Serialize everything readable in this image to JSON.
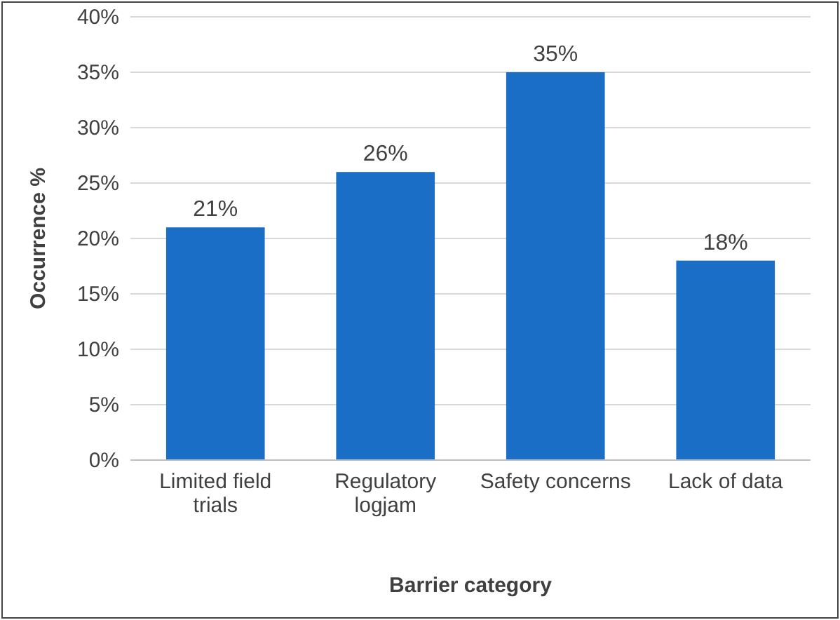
{
  "chart_data": {
    "type": "bar",
    "xlabel": "Barrier category",
    "ylabel": "Occurrence %",
    "categories": [
      "Limited field trials",
      "Regulatory logjam",
      "Safety concerns",
      "Lack of data"
    ],
    "values": [
      21,
      26,
      35,
      18
    ],
    "value_labels": [
      "21%",
      "26%",
      "35%",
      "18%"
    ],
    "color": "#1b6ec6",
    "ylim": [
      0,
      40
    ],
    "yticks": [
      {
        "value": 0,
        "label": "0%"
      },
      {
        "value": 5,
        "label": "5%"
      },
      {
        "value": 10,
        "label": "10%"
      },
      {
        "value": 15,
        "label": "15%"
      },
      {
        "value": 20,
        "label": "20%"
      },
      {
        "value": 25,
        "label": "25%"
      },
      {
        "value": 30,
        "label": "30%"
      },
      {
        "value": 35,
        "label": "35%"
      },
      {
        "value": 40,
        "label": "40%"
      }
    ],
    "grid": "y"
  }
}
